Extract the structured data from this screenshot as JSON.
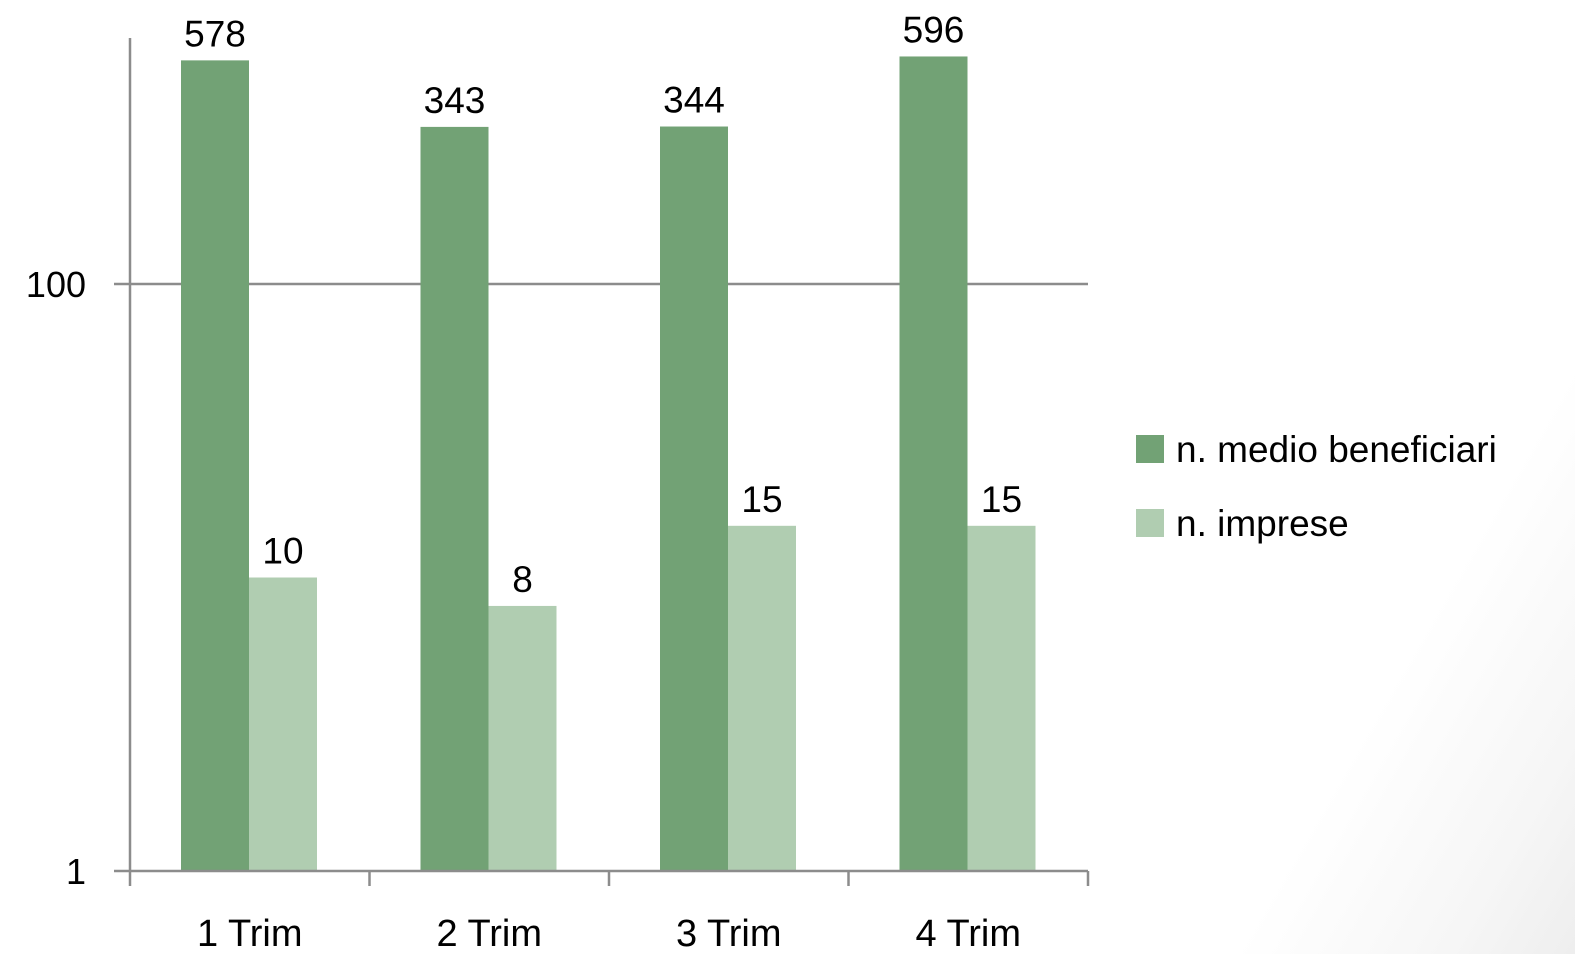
{
  "chart_data": {
    "type": "bar",
    "title": "",
    "xlabel": "",
    "ylabel": "",
    "yscale": "log",
    "ylim": [
      1,
      1000
    ],
    "yticks": [
      1,
      100
    ],
    "ytick_labels": [
      "1",
      "100"
    ],
    "grid": true,
    "legend_position": "right",
    "categories": [
      "1 Trim",
      "2 Trim",
      "3 Trim",
      "4 Trim"
    ],
    "series": [
      {
        "name": "n. medio beneficiari",
        "color": "#72a275",
        "values": [
          578,
          343,
          344,
          596
        ],
        "labels": [
          "578",
          "343",
          "344",
          "596"
        ]
      },
      {
        "name": "n. imprese",
        "color": "#b0cdb1",
        "values": [
          10,
          8,
          15,
          15
        ],
        "labels": [
          "10",
          "8",
          "15",
          "15"
        ]
      }
    ]
  }
}
